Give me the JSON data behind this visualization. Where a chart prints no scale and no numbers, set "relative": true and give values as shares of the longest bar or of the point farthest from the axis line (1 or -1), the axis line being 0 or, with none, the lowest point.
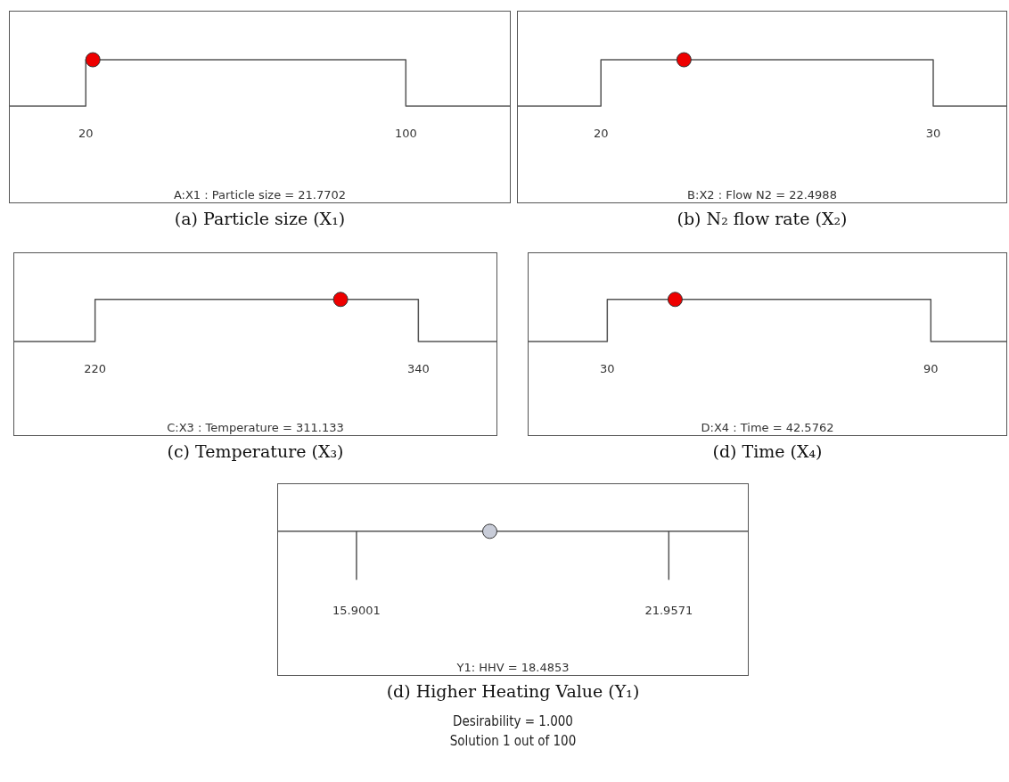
{
  "chart_data": [
    {
      "type": "line",
      "title": "(a) Particle size (X₁)",
      "xlabel": "A:X1 : Particle size = 21.7702",
      "relative": true,
      "xlim": [
        1,
        126
      ],
      "xticks": [
        20,
        100
      ],
      "series": [
        {
          "color": "#555555",
          "x": [
            1,
            20,
            20,
            100,
            100,
            126
          ],
          "values": [
            0,
            0,
            1,
            1,
            0,
            0
          ],
          "marker": "none"
        },
        {
          "type": "scatter",
          "color": "#ee0000",
          "x": [
            21.7702
          ],
          "values": [
            1
          ],
          "marker": "circle"
        }
      ]
    },
    {
      "type": "line",
      "title": "(b) N₂ flow rate (X₂)",
      "xlabel": "B:X2 : Flow N2 = 22.4988",
      "relative": true,
      "xlim": [
        17.5,
        32.2
      ],
      "xticks": [
        20,
        30
      ],
      "series": [
        {
          "color": "#555555",
          "x": [
            17.5,
            20,
            20,
            30,
            30,
            32.2
          ],
          "values": [
            0,
            0,
            1,
            1,
            0,
            0
          ],
          "marker": "none"
        },
        {
          "type": "scatter",
          "color": "#ee0000",
          "x": [
            22.4988
          ],
          "values": [
            1
          ],
          "marker": "circle"
        }
      ]
    },
    {
      "type": "line",
      "title": "(c) Temperature (X₃)",
      "xlabel": "C:X3 : Temperature = 311.133",
      "relative": true,
      "xlim": [
        190,
        369
      ],
      "xticks": [
        220,
        340
      ],
      "series": [
        {
          "color": "#555555",
          "x": [
            190,
            220,
            220,
            340,
            340,
            369
          ],
          "values": [
            0,
            0,
            1,
            1,
            0,
            0
          ],
          "marker": "none"
        },
        {
          "type": "scatter",
          "color": "#ee0000",
          "x": [
            311.133
          ],
          "values": [
            1
          ],
          "marker": "circle"
        }
      ]
    },
    {
      "type": "line",
      "title": "(d) Time (X₄)",
      "xlabel": "D:X4 : Time = 42.5762",
      "relative": true,
      "xlim": [
        15.4,
        104
      ],
      "xticks": [
        30,
        90
      ],
      "series": [
        {
          "color": "#555555",
          "x": [
            15.4,
            30,
            30,
            90,
            90,
            104
          ],
          "values": [
            0,
            0,
            1,
            1,
            0,
            0
          ],
          "marker": "none"
        },
        {
          "type": "scatter",
          "color": "#ee0000",
          "x": [
            42.5762
          ],
          "values": [
            1
          ],
          "marker": "circle"
        }
      ]
    },
    {
      "type": "line",
      "title": "(d) Higher Heating Value (Y₁)",
      "xlabel": "Y1: HHV = 18.4853",
      "relative": true,
      "xlim": [
        14.38,
        23.49
      ],
      "xticks": [
        15.9001,
        21.9571
      ],
      "annotations": [
        "Desirability = 1.000",
        "Solution 1 out of 100"
      ],
      "series": [
        {
          "color": "#555555",
          "x": [
            14.38,
            15.9001,
            15.9001,
            15.9001,
            21.9571,
            21.9571,
            21.9571,
            23.49
          ],
          "values": [
            1,
            1,
            0,
            1,
            1,
            0,
            1,
            1
          ],
          "marker": "none"
        },
        {
          "type": "scatter",
          "color": "#c8ccd8",
          "x": [
            18.4853
          ],
          "values": [
            1
          ],
          "marker": "circle"
        }
      ]
    }
  ]
}
